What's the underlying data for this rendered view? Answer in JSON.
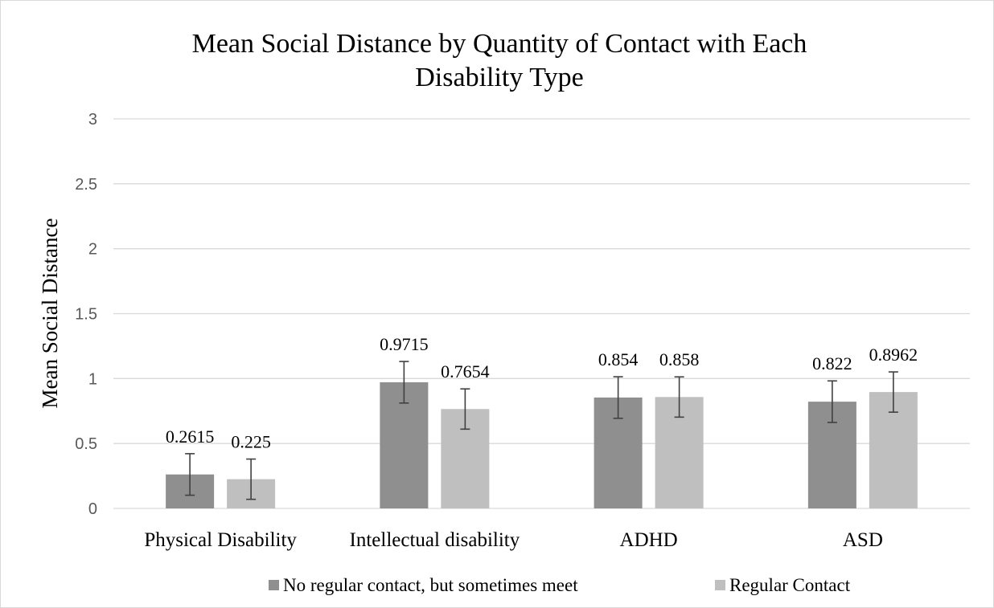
{
  "chart_data": {
    "type": "bar",
    "title_lines": [
      "Mean Social Distance by Quantity of Contact with Each",
      "Disability Type"
    ],
    "ylabel": "Mean Social Distance",
    "xlabel": "",
    "ylim": [
      0,
      3
    ],
    "yticks": [
      0,
      0.5,
      1,
      1.5,
      2,
      2.5,
      3
    ],
    "ytick_labels": [
      "0",
      "0.5",
      "1",
      "1.5",
      "2",
      "2.5",
      "3"
    ],
    "grid": true,
    "legend_position": "bottom",
    "categories": [
      "Physical Disability",
      "Intellectual disability",
      "ADHD",
      "ASD"
    ],
    "series": [
      {
        "name": "No regular contact, but sometimes meet",
        "color": "#8f8f8f",
        "values": [
          0.2615,
          0.9715,
          0.854,
          0.822
        ],
        "labels": [
          "0.2615",
          "0.9715",
          "0.854",
          "0.822"
        ],
        "error": [
          0.16,
          0.16,
          0.16,
          0.16
        ]
      },
      {
        "name": "Regular Contact",
        "color": "#bfbfbf",
        "values": [
          0.225,
          0.7654,
          0.858,
          0.8962
        ],
        "labels": [
          "0.225",
          "0.7654",
          "0.858",
          "0.8962"
        ],
        "error": [
          0.155,
          0.155,
          0.155,
          0.155
        ]
      }
    ]
  }
}
